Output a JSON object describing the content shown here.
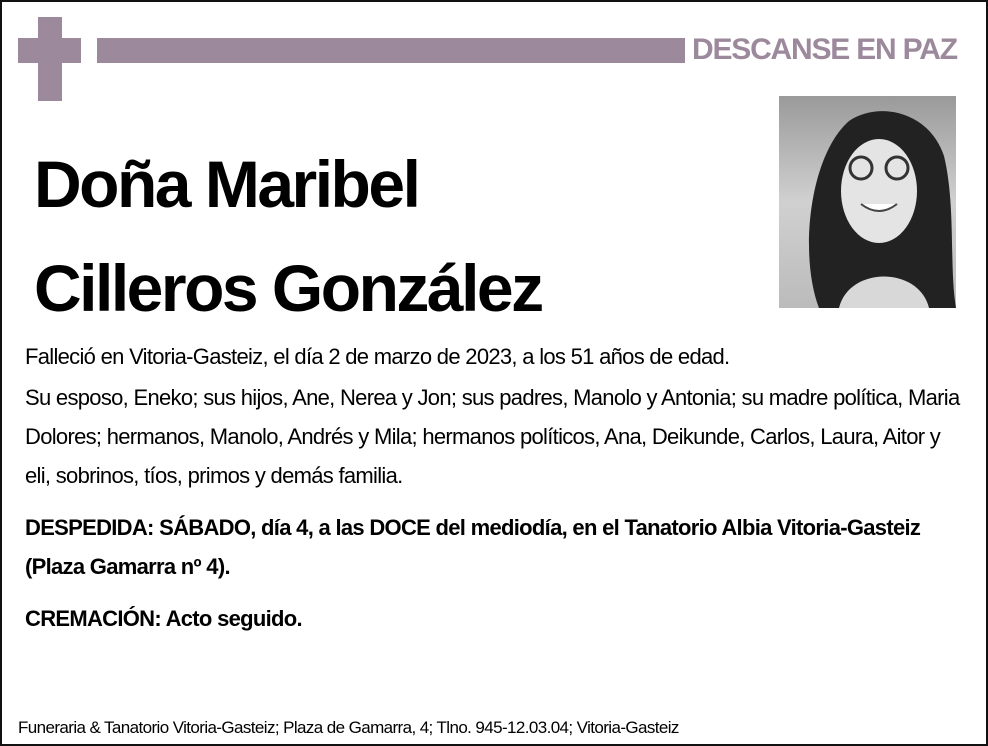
{
  "header": {
    "label": "DESCANSE EN PAZ",
    "accent_color": "#9c8a9c"
  },
  "name": {
    "line1": "Doña Maribel",
    "line2": "Cilleros González"
  },
  "photo": {
    "icon": "portrait-photo"
  },
  "body": {
    "death_notice": "Falleció en Vitoria-Gasteiz, el día 2 de marzo de 2023,  a los 51 años de edad.",
    "family": "Su esposo, Eneko; sus hijos, Ane, Nerea y Jon; sus padres, Manolo y Antonia; su madre política, Maria Dolores; hermanos, Manolo, Andrés y Mila; hermanos políticos, Ana, Deikunde, Carlos, Laura, Aitor y eli, sobrinos, tíos, primos y demás familia.",
    "farewell": "DESPEDIDA: SÁBADO, día 4, a las DOCE del mediodía, en el Tanatorio Albia Vitoria-Gasteiz (Plaza Gamarra nº 4).",
    "cremation": "CREMACIÓN: Acto seguido."
  },
  "footer": "Funeraria & Tanatorio Vitoria-Gasteiz; Plaza de Gamarra, 4; Tlno. 945-12.03.04; Vitoria-Gasteiz"
}
